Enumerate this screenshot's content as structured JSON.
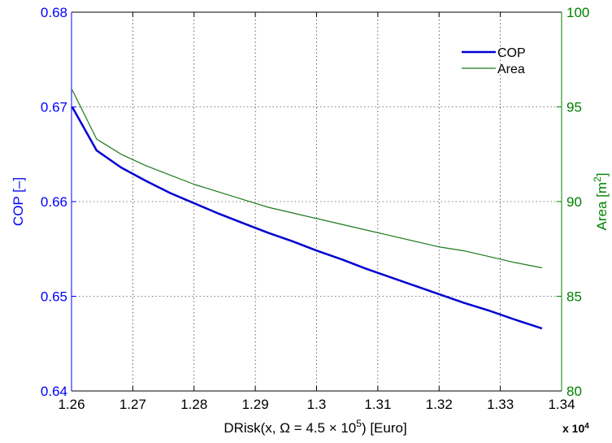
{
  "chart_data": {
    "type": "line",
    "xlabel": "DRisk(x, Ω = 4.5 × 10",
    "xlabel_sup": "5",
    "xlabel_tail": ") [Euro]",
    "x_multiplier": "x 10",
    "x_multiplier_sup": "4",
    "ylabel_left": "COP [–]",
    "ylabel_right": "Area [m",
    "ylabel_right_sup": "2",
    "ylabel_right_tail": "]",
    "xlim": [
      1.26,
      1.34
    ],
    "ylim_left": [
      0.64,
      0.68
    ],
    "ylim_right": [
      80,
      100
    ],
    "x_ticks": [
      "1.26",
      "1.27",
      "1.28",
      "1.29",
      "1.3",
      "1.31",
      "1.32",
      "1.33",
      "1.34"
    ],
    "y_left_ticks": [
      "0.64",
      "0.65",
      "0.66",
      "0.67",
      "0.68"
    ],
    "y_right_ticks": [
      "80",
      "85",
      "90",
      "95",
      "100"
    ],
    "grid": true,
    "legend_position": "top-right",
    "colors": {
      "left_axis": "#0000ff",
      "right_axis": "#008000",
      "cop": "#0000d0",
      "area": "#1a7a1a"
    },
    "series": [
      {
        "name": "COP",
        "axis": "left",
        "x": [
          1.2601,
          1.2641,
          1.2681,
          1.2721,
          1.2761,
          1.2801,
          1.2841,
          1.2881,
          1.2921,
          1.2961,
          1.3001,
          1.3041,
          1.3081,
          1.3121,
          1.3161,
          1.3201,
          1.3241,
          1.3281,
          1.3321,
          1.3368
        ],
        "values": [
          0.67,
          0.6654,
          0.6636,
          0.6622,
          0.6609,
          0.6598,
          0.6587,
          0.6577,
          0.6567,
          0.6558,
          0.6548,
          0.6539,
          0.6529,
          0.652,
          0.6511,
          0.6502,
          0.6493,
          0.6485,
          0.6476,
          0.6466
        ]
      },
      {
        "name": "Area",
        "axis": "right",
        "x": [
          1.2601,
          1.2641,
          1.2681,
          1.2721,
          1.2761,
          1.2801,
          1.2841,
          1.2881,
          1.2921,
          1.2961,
          1.3001,
          1.3041,
          1.3081,
          1.3121,
          1.3161,
          1.3201,
          1.3241,
          1.3281,
          1.3321,
          1.3368
        ],
        "values": [
          95.9,
          93.3,
          92.5,
          91.9,
          91.4,
          90.9,
          90.5,
          90.1,
          89.7,
          89.4,
          89.1,
          88.8,
          88.5,
          88.2,
          87.9,
          87.6,
          87.4,
          87.1,
          86.8,
          86.5
        ]
      }
    ]
  }
}
